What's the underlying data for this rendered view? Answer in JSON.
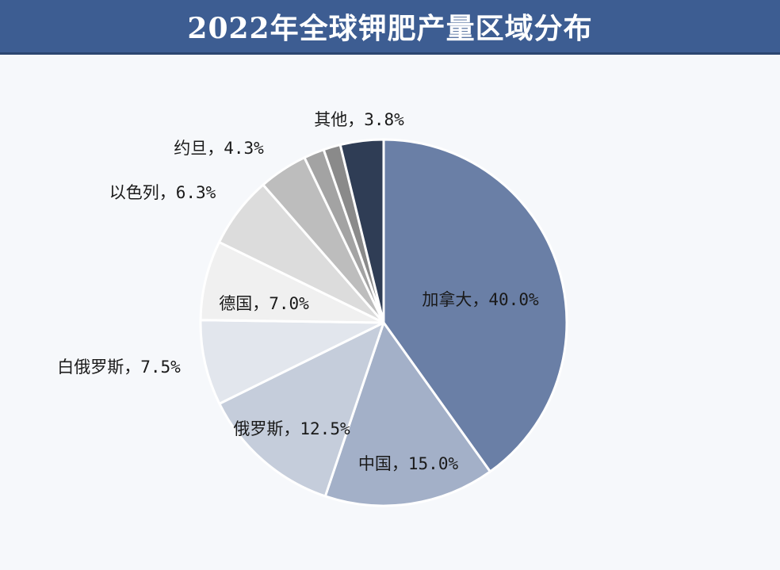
{
  "title": "2022年全球钾肥产量区域分布",
  "chart_data": {
    "type": "pie",
    "title": "2022年全球钾肥产量区域分布",
    "slices": [
      {
        "label": "加拿大",
        "value": 40.0,
        "text": "加拿大，40.0%",
        "color": "#6a7fa6"
      },
      {
        "label": "中国",
        "value": 15.0,
        "text": "中国，15.0%",
        "color": "#a3b0c8"
      },
      {
        "label": "俄罗斯",
        "value": 12.5,
        "text": "俄罗斯，12.5%",
        "color": "#c5cddb"
      },
      {
        "label": "白俄罗斯",
        "value": 7.5,
        "text": "白俄罗斯，7.5%",
        "color": "#e2e6ed"
      },
      {
        "label": "德国",
        "value": 7.0,
        "text": "德国，7.0%",
        "color": "#f0f0f0"
      },
      {
        "label": "以色列",
        "value": 6.3,
        "text": "以色列，6.3%",
        "color": "#dcdcdc"
      },
      {
        "label": "约旦",
        "value": 4.3,
        "text": "约旦，4.3%",
        "color": "#bdbdbd"
      },
      {
        "label": "",
        "value": 1.8,
        "text": "",
        "color": "#a3a3a3"
      },
      {
        "label": "",
        "value": 1.5,
        "text": "",
        "color": "#8a8a8a"
      },
      {
        "label": "其他",
        "value": 3.8,
        "text": "其他，3.8%",
        "color": "#2f3d55"
      }
    ]
  }
}
